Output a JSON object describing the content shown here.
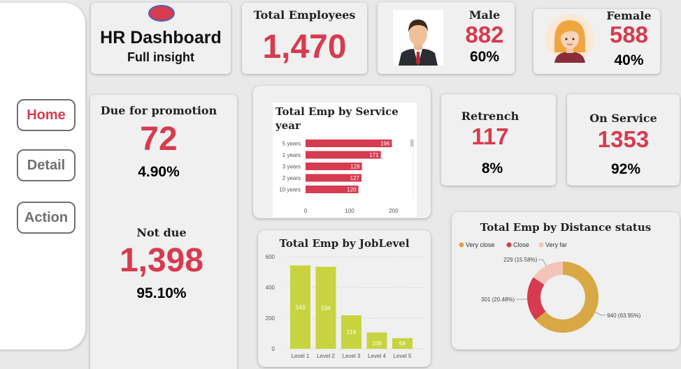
{
  "nav": {
    "home": "Home",
    "detail": "Detail",
    "action": "Action"
  },
  "header": {
    "title": "HR Dashboard",
    "subtitle": "Full insight"
  },
  "total_employees": {
    "label": "Total Employees",
    "value": "1,470"
  },
  "male": {
    "label": "Male",
    "value": "882",
    "pct": "60%"
  },
  "female": {
    "label": "Female",
    "value": "588",
    "pct": "40%"
  },
  "promotion": {
    "due_label": "Due for promotion",
    "due_value": "72",
    "due_pct": "4.90%",
    "notdue_label": "Not due",
    "notdue_value": "1,398",
    "notdue_pct": "95.10%"
  },
  "retrench": {
    "label": "Retrench",
    "value": "117",
    "pct": "8%"
  },
  "on_service": {
    "label": "On Service",
    "value": "1353",
    "pct": "92%"
  },
  "colors": {
    "accent_red": "#d63b4f",
    "bar_green": "#c8d43f",
    "donut_gold": "#d8a844",
    "donut_red": "#d63b4f",
    "donut_pink": "#f5c4b8"
  },
  "chart_data": [
    {
      "type": "bar",
      "orientation": "horizontal",
      "title": "Total Emp by Service year",
      "categories": [
        "5 years",
        "1 years",
        "3 years",
        "2 years",
        "10 years"
      ],
      "values": [
        196,
        171,
        128,
        127,
        120
      ],
      "xticks": [
        "0",
        "100",
        "200"
      ],
      "xlim": [
        0,
        200
      ]
    },
    {
      "type": "bar",
      "title": "Total Emp by JobLevel",
      "categories": [
        "Level 1",
        "Level 2",
        "Level 3",
        "Level 4",
        "Level 5"
      ],
      "values": [
        543,
        534,
        218,
        106,
        69
      ],
      "yticks": [
        "0",
        "200",
        "400",
        "600"
      ],
      "ylim": [
        0,
        600
      ]
    },
    {
      "type": "pie",
      "title": "Total Emp by Distance status",
      "legend": [
        "Very close",
        "Close",
        "Very far"
      ],
      "legend_position": "top-left",
      "values": [
        940,
        301,
        229
      ],
      "labels": [
        "940 (63.95%)",
        "301 (20.48%)",
        "229 (15.58%)"
      ]
    }
  ]
}
